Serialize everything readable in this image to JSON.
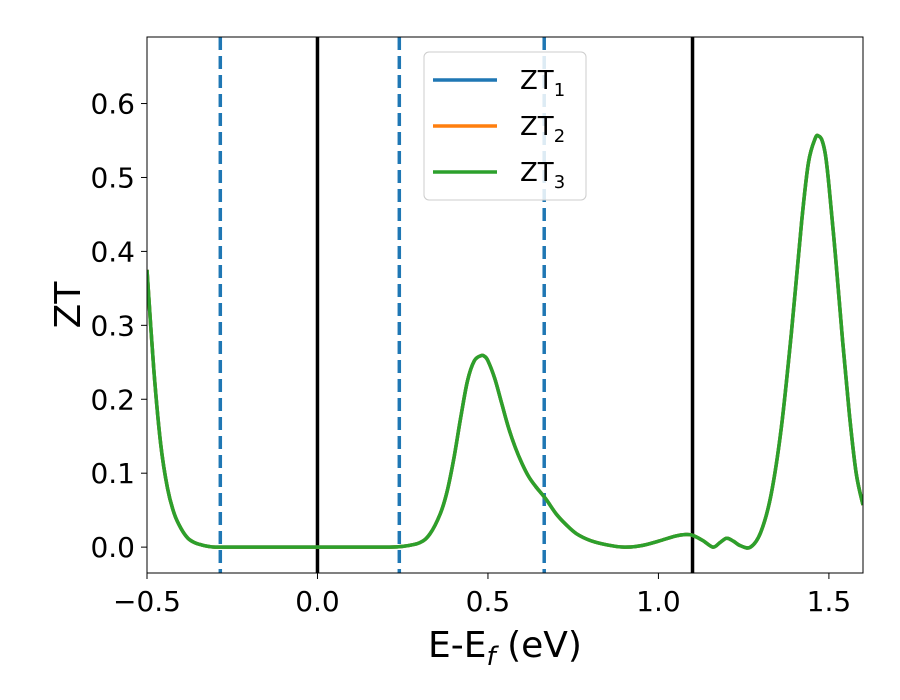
{
  "chart_data": {
    "type": "line",
    "xlabel": {
      "main": "E-E",
      "sub": "f",
      "tail": " (eV)"
    },
    "ylabel": "ZT",
    "xlim": [
      -0.5,
      1.6
    ],
    "ylim": [
      -0.035,
      0.69
    ],
    "xticks": [
      -0.5,
      0.0,
      0.5,
      1.0,
      1.5
    ],
    "xtick_labels": [
      "−0.5",
      "0.0",
      "0.5",
      "1.0",
      "1.5"
    ],
    "yticks": [
      0.0,
      0.1,
      0.2,
      0.3,
      0.4,
      0.5,
      0.6
    ],
    "ytick_labels": [
      "0.0",
      "0.1",
      "0.2",
      "0.3",
      "0.4",
      "0.5",
      "0.6"
    ],
    "grid": false,
    "legend_position": "top-center",
    "series": [
      {
        "name": "ZT",
        "sub": "1",
        "color": "#1f77b4"
      },
      {
        "name": "ZT",
        "sub": "2",
        "color": "#ff7f0e"
      },
      {
        "name": "ZT",
        "sub": "3",
        "color": "#2ca02c"
      }
    ],
    "curve_points": {
      "x": [
        -0.5,
        -0.48,
        -0.46,
        -0.44,
        -0.42,
        -0.4,
        -0.38,
        -0.36,
        -0.34,
        -0.32,
        -0.3,
        -0.25,
        -0.2,
        -0.1,
        0.0,
        0.1,
        0.2,
        0.25,
        0.3,
        0.33,
        0.36,
        0.38,
        0.4,
        0.42,
        0.44,
        0.46,
        0.48,
        0.49,
        0.5,
        0.52,
        0.54,
        0.56,
        0.58,
        0.6,
        0.62,
        0.64,
        0.67,
        0.7,
        0.73,
        0.76,
        0.8,
        0.85,
        0.9,
        0.95,
        1.0,
        1.05,
        1.08,
        1.1,
        1.13,
        1.16,
        1.18,
        1.2,
        1.22,
        1.24,
        1.27,
        1.3,
        1.33,
        1.36,
        1.39,
        1.42,
        1.44,
        1.46,
        1.47,
        1.48,
        1.49,
        1.5,
        1.52,
        1.54,
        1.56,
        1.58,
        1.6
      ],
      "y": [
        0.375,
        0.24,
        0.14,
        0.08,
        0.045,
        0.025,
        0.012,
        0.006,
        0.003,
        0.001,
        0.0,
        0.0,
        0.0,
        0.0,
        0.0,
        0.0,
        0.0,
        0.001,
        0.006,
        0.018,
        0.045,
        0.075,
        0.12,
        0.175,
        0.225,
        0.252,
        0.259,
        0.258,
        0.252,
        0.228,
        0.195,
        0.162,
        0.135,
        0.113,
        0.095,
        0.082,
        0.065,
        0.045,
        0.03,
        0.018,
        0.009,
        0.003,
        0.0,
        0.002,
        0.008,
        0.015,
        0.017,
        0.016,
        0.009,
        0.0,
        0.006,
        0.012,
        0.008,
        0.002,
        0.0,
        0.02,
        0.07,
        0.16,
        0.29,
        0.44,
        0.52,
        0.553,
        0.556,
        0.55,
        0.53,
        0.49,
        0.39,
        0.28,
        0.18,
        0.1,
        0.057
      ]
    },
    "vlines_solid": [
      0.0,
      1.1
    ],
    "vlines_dashed": [
      -0.285,
      0.24,
      0.665
    ],
    "solid_color": "#000000",
    "dashed_color": "#1f77b4"
  }
}
